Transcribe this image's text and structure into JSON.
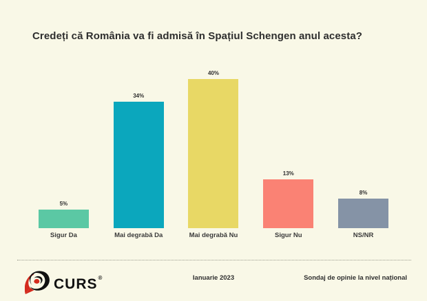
{
  "title": "Credeți că România va fi admisă în Spațiul Schengen anul acesta?",
  "chart_data": {
    "type": "bar",
    "title": "Credeți că România va fi admisă în Spațiul Schengen anul acesta?",
    "categories": [
      "Sigur Da",
      "Mai degrabă Da",
      "Mai degrabă Nu",
      "Sigur Nu",
      "NS/NR"
    ],
    "values": [
      5,
      34,
      40,
      13,
      8
    ],
    "value_labels": [
      "5%",
      "34%",
      "40%",
      "13%",
      "8%"
    ],
    "colors": [
      "#5BC8A4",
      "#0BA7BD",
      "#E8D865",
      "#FA8274",
      "#8593A6"
    ],
    "xlabel": "",
    "ylabel": "",
    "ylim": [
      0,
      40
    ],
    "grid": false,
    "legend": false
  },
  "footer": {
    "logo_text": "CURS",
    "logo_reg": "®",
    "date": "Ianuarie 2023",
    "note": "Sondaj de opinie la nivel național"
  },
  "colors": {
    "background": "#F9F8E7",
    "title_text": "#2E2E2E",
    "label_text": "#3A3A3A",
    "logo_black": "#111111",
    "logo_red": "#D42B1E"
  }
}
